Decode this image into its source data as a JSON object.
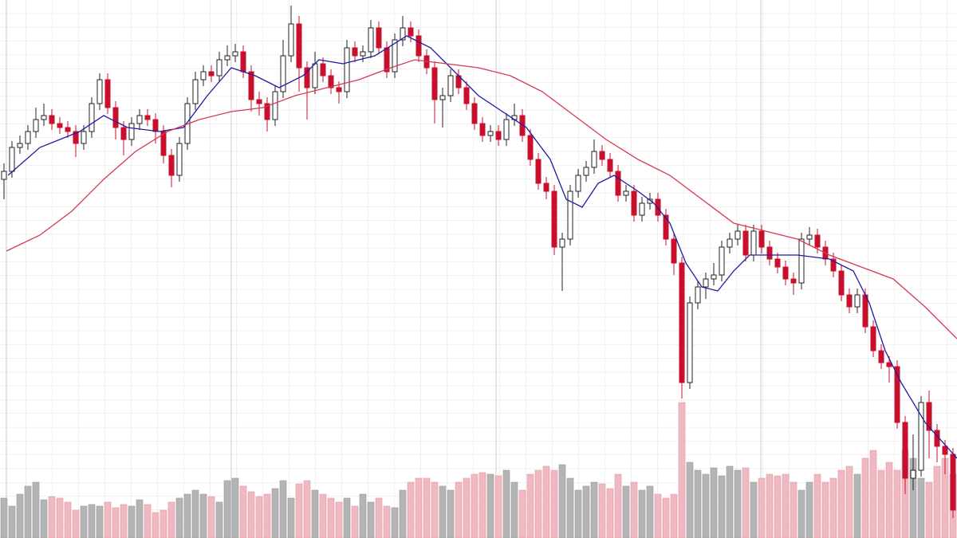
{
  "chart_data": {
    "type": "candlestick",
    "xlim": [
      -0.5,
      119.5
    ],
    "ylim": [
      0,
      675
    ],
    "grid": true,
    "up_color": "#ffffff",
    "down_color": "#c8102e",
    "open": [
      450,
      460,
      490,
      495,
      510,
      525,
      530,
      520,
      515,
      510,
      495,
      510,
      545,
      575,
      540,
      515,
      500,
      520,
      530,
      525,
      510,
      480,
      455,
      495,
      545,
      575,
      585,
      580,
      600,
      605,
      610,
      585,
      550,
      545,
      525,
      560,
      605,
      645,
      590,
      565,
      595,
      580,
      565,
      560,
      615,
      605,
      610,
      640,
      615,
      585,
      625,
      640,
      630,
      605,
      590,
      550,
      555,
      580,
      565,
      545,
      520,
      505,
      510,
      500,
      525,
      530,
      505,
      475,
      445,
      435,
      365,
      375,
      435,
      455,
      465,
      485,
      475,
      460,
      430,
      435,
      405,
      420,
      425,
      405,
      375,
      345,
      195,
      295,
      315,
      325,
      330,
      365,
      375,
      385,
      355,
      385,
      365,
      350,
      340,
      325,
      320,
      375,
      380,
      365,
      350,
      335,
      305,
      290,
      305,
      265,
      235,
      220,
      215,
      145,
      75,
      85,
      170,
      135,
      115,
      105
    ],
    "high": [
      470,
      498,
      505,
      518,
      540,
      545,
      538,
      528,
      523,
      518,
      518,
      553,
      583,
      583,
      548,
      523,
      528,
      538,
      538,
      533,
      518,
      488,
      503,
      553,
      585,
      593,
      593,
      610,
      618,
      620,
      618,
      593,
      560,
      553,
      568,
      625,
      668,
      655,
      598,
      610,
      603,
      588,
      573,
      625,
      623,
      618,
      650,
      648,
      623,
      633,
      655,
      648,
      638,
      613,
      598,
      565,
      588,
      588,
      573,
      553,
      528,
      518,
      518,
      533,
      545,
      538,
      513,
      483,
      453,
      443,
      383,
      443,
      463,
      473,
      500,
      493,
      483,
      468,
      443,
      443,
      428,
      433,
      433,
      413,
      383,
      353,
      303,
      323,
      333,
      345,
      373,
      383,
      393,
      393,
      393,
      393,
      373,
      358,
      348,
      333,
      383,
      390,
      388,
      373,
      358,
      343,
      313,
      313,
      313,
      273,
      243,
      228,
      223,
      153,
      130,
      178,
      185,
      143,
      123,
      113
    ],
    "low": [
      425,
      452,
      482,
      487,
      502,
      517,
      512,
      507,
      502,
      478,
      487,
      502,
      537,
      532,
      500,
      480,
      492,
      512,
      517,
      495,
      470,
      440,
      447,
      487,
      537,
      567,
      572,
      572,
      592,
      597,
      577,
      535,
      530,
      510,
      517,
      552,
      597,
      560,
      525,
      557,
      572,
      557,
      545,
      552,
      597,
      597,
      602,
      607,
      577,
      577,
      617,
      622,
      597,
      582,
      520,
      515,
      547,
      557,
      537,
      512,
      497,
      497,
      492,
      492,
      517,
      497,
      467,
      437,
      425,
      355,
      310,
      367,
      427,
      447,
      457,
      467,
      452,
      422,
      422,
      397,
      397,
      412,
      397,
      367,
      330,
      175,
      187,
      287,
      300,
      317,
      322,
      357,
      367,
      347,
      347,
      357,
      342,
      332,
      317,
      305,
      312,
      367,
      357,
      342,
      327,
      297,
      282,
      282,
      257,
      227,
      212,
      195,
      137,
      55,
      60,
      77,
      100,
      95,
      80,
      25
    ],
    "close": [
      460,
      490,
      495,
      510,
      525,
      530,
      520,
      515,
      510,
      495,
      510,
      545,
      575,
      540,
      515,
      500,
      520,
      530,
      525,
      510,
      480,
      455,
      495,
      545,
      575,
      585,
      580,
      600,
      605,
      610,
      585,
      550,
      545,
      525,
      560,
      605,
      645,
      590,
      565,
      595,
      580,
      565,
      560,
      615,
      605,
      610,
      640,
      615,
      585,
      625,
      640,
      630,
      605,
      590,
      550,
      555,
      580,
      565,
      545,
      520,
      505,
      510,
      500,
      525,
      530,
      505,
      475,
      445,
      435,
      365,
      375,
      435,
      455,
      465,
      485,
      475,
      460,
      430,
      435,
      405,
      420,
      425,
      405,
      375,
      345,
      195,
      295,
      315,
      325,
      330,
      365,
      375,
      385,
      355,
      385,
      365,
      350,
      340,
      325,
      320,
      375,
      380,
      365,
      350,
      335,
      305,
      290,
      305,
      265,
      235,
      220,
      215,
      145,
      75,
      85,
      170,
      135,
      115,
      105,
      35
    ],
    "volume": {
      "ylim": [
        0,
        675
      ],
      "up_color": "#b4b4b4",
      "down_color": "#f0b8c0",
      "values": [
        50,
        40,
        55,
        65,
        70,
        48,
        52,
        50,
        45,
        35,
        40,
        42,
        40,
        45,
        38,
        42,
        40,
        48,
        42,
        32,
        35,
        45,
        50,
        55,
        60,
        55,
        52,
        45,
        72,
        75,
        65,
        58,
        52,
        55,
        62,
        72,
        50,
        68,
        72,
        60,
        55,
        50,
        45,
        50,
        40,
        55,
        45,
        50,
        40,
        38,
        60,
        70,
        75,
        75,
        70,
        65,
        60,
        70,
        75,
        80,
        82,
        80,
        78,
        85,
        70,
        60,
        80,
        85,
        90,
        85,
        92,
        75,
        60,
        65,
        70,
        68,
        62,
        80,
        65,
        70,
        60,
        65,
        55,
        50,
        55,
        170,
        95,
        85,
        80,
        88,
        78,
        90,
        85,
        88,
        70,
        75,
        80,
        78,
        80,
        70,
        60,
        70,
        80,
        70,
        75,
        85,
        90,
        80,
        100,
        110,
        85,
        95,
        85,
        110,
        100,
        75,
        70,
        90,
        100,
        80
      ]
    },
    "lines": [
      {
        "color": "#1c1ca0",
        "x": [
          0.5,
          4.5,
          9.5,
          12.5,
          15.5,
          19.5,
          22.5,
          25.5,
          28.5,
          31.5,
          34.5,
          37.5,
          39.5,
          42.5,
          46.5,
          50.5,
          53.5,
          56.5,
          59.5,
          62.5,
          65.5,
          68.5,
          70.5,
          72.5,
          74.5,
          76.5,
          79.5,
          81.5,
          83.5,
          85.5,
          87.5,
          89.5,
          91.5,
          93.5,
          96.5,
          99.5,
          103.5,
          106.5,
          108.5,
          110.5,
          112.5,
          115.5,
          119.5
        ],
        "values": [
          455,
          490,
          510,
          530,
          515,
          510,
          515,
          555,
          590,
          580,
          565,
          580,
          600,
          595,
          605,
          630,
          615,
          585,
          555,
          535,
          515,
          475,
          425,
          415,
          445,
          455,
          435,
          420,
          395,
          345,
          315,
          310,
          335,
          355,
          355,
          355,
          350,
          335,
          295,
          235,
          195,
          145,
          100
        ]
      },
      {
        "color": "#d43a52",
        "x": [
          0.3,
          4.5,
          8.5,
          12.5,
          16.5,
          20.5,
          24.5,
          28.5,
          32.5,
          36.5,
          40.5,
          44.5,
          48.5,
          51.5,
          55.5,
          59.5,
          63.5,
          67.5,
          71.5,
          75.5,
          79.5,
          83.5,
          87.5,
          91.5,
          95.5,
          99.5,
          103.5,
          107.5,
          111.5,
          115.5,
          119.5
        ],
        "values": [
          360,
          380,
          410,
          450,
          485,
          510,
          525,
          535,
          540,
          555,
          565,
          575,
          590,
          600,
          595,
          590,
          580,
          560,
          530,
          500,
          475,
          455,
          425,
          395,
          385,
          375,
          355,
          340,
          325,
          290,
          250
        ]
      }
    ]
  }
}
